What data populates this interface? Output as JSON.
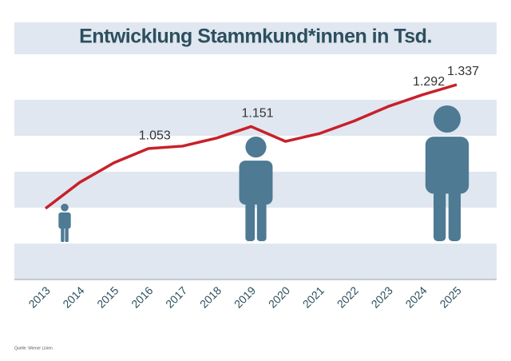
{
  "chart_data": {
    "type": "line",
    "title": "Entwicklung Stammkund*innen in Tsd.",
    "categories": [
      "2013",
      "2014",
      "2015",
      "2016",
      "2017",
      "2018",
      "2019",
      "2020",
      "2021",
      "2022",
      "2023",
      "2024",
      "2025"
    ],
    "series": [
      {
        "color": "#c8202a",
        "values": [
          787,
          903,
          990,
          1053,
          1064,
          1100,
          1151,
          1085,
          1120,
          1175,
          1240,
          1292,
          1337
        ],
        "value_labels": [
          null,
          null,
          null,
          "1.053",
          null,
          null,
          "1.151",
          null,
          null,
          null,
          null,
          "1.292",
          "1.337"
        ]
      }
    ],
    "source": "Quelle: Wiener Linien"
  }
}
